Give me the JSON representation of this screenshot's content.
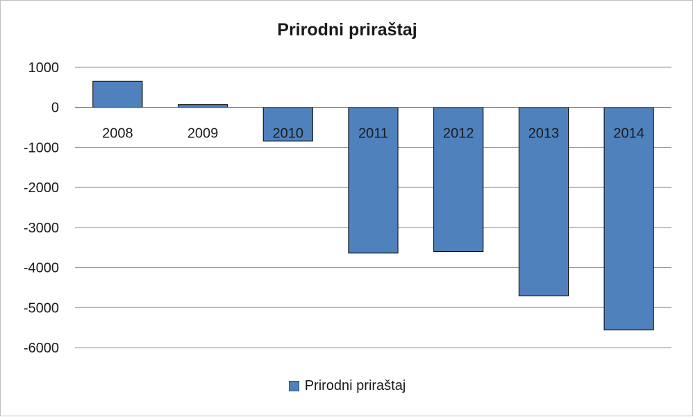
{
  "chart_data": {
    "type": "bar",
    "title": "Prirodni priraštaj",
    "xlabel": "",
    "ylabel": "",
    "categories": [
      "2008",
      "2009",
      "2010",
      "2011",
      "2012",
      "2013",
      "2014"
    ],
    "series": [
      {
        "name": "Prirodni priraštaj",
        "values": [
          650,
          70,
          -840,
          -3640,
          -3600,
          -4710,
          -5560
        ]
      }
    ],
    "ylim": [
      -6000,
      1000
    ],
    "yticks": [
      1000,
      0,
      -1000,
      -2000,
      -3000,
      -4000,
      -5000,
      -6000
    ],
    "grid": true,
    "legend": "bottom",
    "bar_color": "#4f81bd",
    "bar_border": "#000000"
  }
}
